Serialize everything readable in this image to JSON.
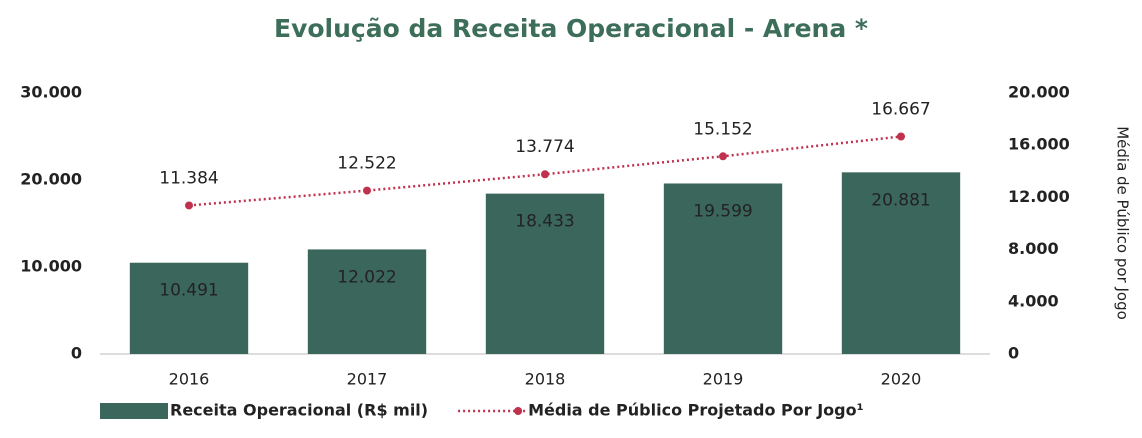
{
  "chart_data": {
    "type": "bar",
    "title": "Evolução da Receita Operacional - Arena *",
    "y2_label": "Média de Público por Jogo",
    "categories": [
      "2016",
      "2017",
      "2018",
      "2019",
      "2020"
    ],
    "series": [
      {
        "name": "Receita Operacional (R$ mil)",
        "type": "bar",
        "color": "#3b665c",
        "values": [
          10491,
          12022,
          18433,
          19599,
          20881
        ],
        "value_labels": [
          "10.491",
          "12.022",
          "18.433",
          "19.599",
          "20.881"
        ]
      },
      {
        "name": "Média de Público Projetado Por Jogo¹",
        "type": "line",
        "axis": "y2",
        "color": "#c0314e",
        "values": [
          11384,
          12522,
          13774,
          15152,
          16667
        ],
        "value_labels": [
          "11.384",
          "12.522",
          "13.774",
          "15.152",
          "16.667"
        ]
      }
    ],
    "ylim": [
      0,
      30000
    ],
    "yticks": [
      0,
      {
        "value": 10000,
        "label": "10.000"
      },
      {
        "value": 20000,
        "label": "20.000"
      },
      {
        "value": 30000,
        "label": "30.000"
      }
    ],
    "y2lim": [
      0,
      20000
    ],
    "y2ticks": [
      0,
      {
        "value": 4000,
        "label": "4.000"
      },
      {
        "value": 8000,
        "label": "8.000"
      },
      {
        "value": 12000,
        "label": "12.000"
      },
      {
        "value": 16000,
        "label": "16.000"
      },
      {
        "value": 20000,
        "label": "20.000"
      }
    ],
    "legend": "bottom"
  }
}
